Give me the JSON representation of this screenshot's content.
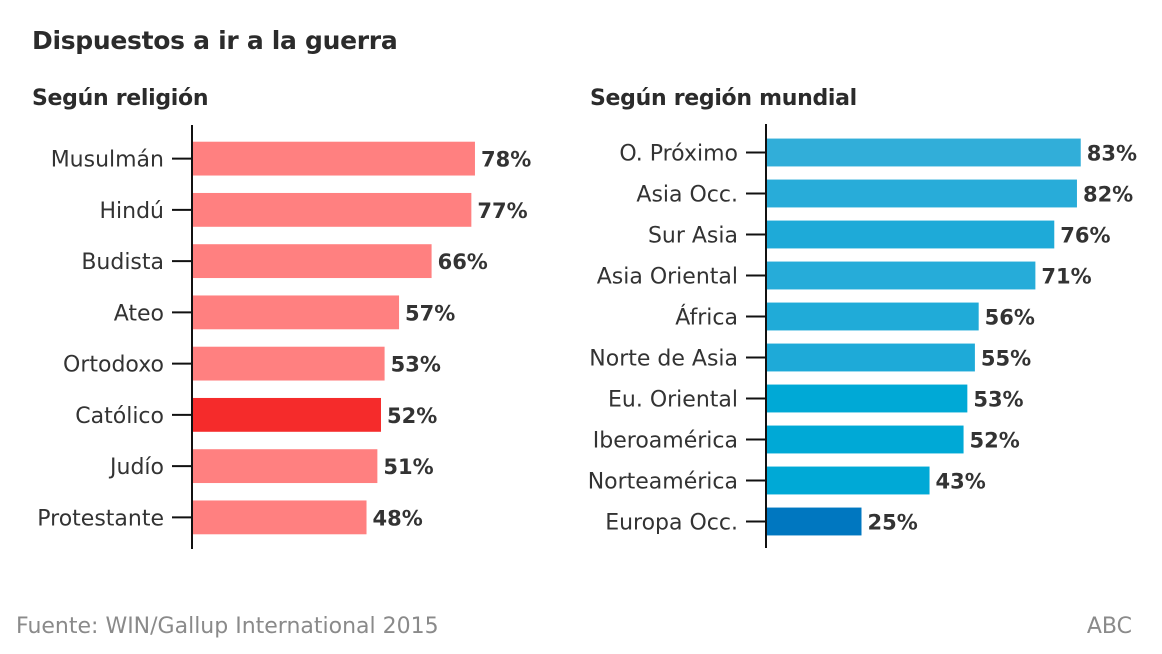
{
  "title": "Dispuestos a ir a la guerra",
  "footer": {
    "source": "Fuente: WIN/Gallup International 2015",
    "credit": "ABC"
  },
  "chart_data": [
    {
      "type": "bar",
      "orientation": "horizontal",
      "title": "Según religión",
      "xlabel": "",
      "ylabel": "",
      "unit": "%",
      "xlim": [
        0,
        100
      ],
      "grid": false,
      "categories": [
        "Musulmán",
        "Hindú",
        "Budista",
        "Ateo",
        "Ortodoxo",
        "Católico",
        "Judío",
        "Protestante"
      ],
      "values": [
        78,
        77,
        66,
        57,
        53,
        52,
        51,
        48
      ],
      "colors": [
        "#ff8080",
        "#ff8080",
        "#ff8080",
        "#ff8080",
        "#ff8080",
        "#f52b2b",
        "#ff8080",
        "#ff8080"
      ],
      "highlight": "Católico"
    },
    {
      "type": "bar",
      "orientation": "horizontal",
      "title": "Según región mundial",
      "xlabel": "",
      "ylabel": "",
      "unit": "%",
      "xlim": [
        0,
        100
      ],
      "grid": false,
      "categories": [
        "O. Próximo",
        "Asia Occ.",
        "Sur Asia",
        "Asia Oriental",
        "África",
        "Norte de Asia",
        "Eu. Oriental",
        "Iberoamérica",
        "Norteamérica",
        "Europa Occ."
      ],
      "values": [
        83,
        82,
        76,
        71,
        56,
        55,
        53,
        52,
        43,
        25
      ],
      "colors": [
        "#31aed9",
        "#28acd9",
        "#1eaad8",
        "#26acd9",
        "#20abd8",
        "#1eaad8",
        "#00a9d6",
        "#00a9d6",
        "#00a9d6",
        "#0077c0"
      ],
      "highlight": "Europa Occ."
    }
  ]
}
